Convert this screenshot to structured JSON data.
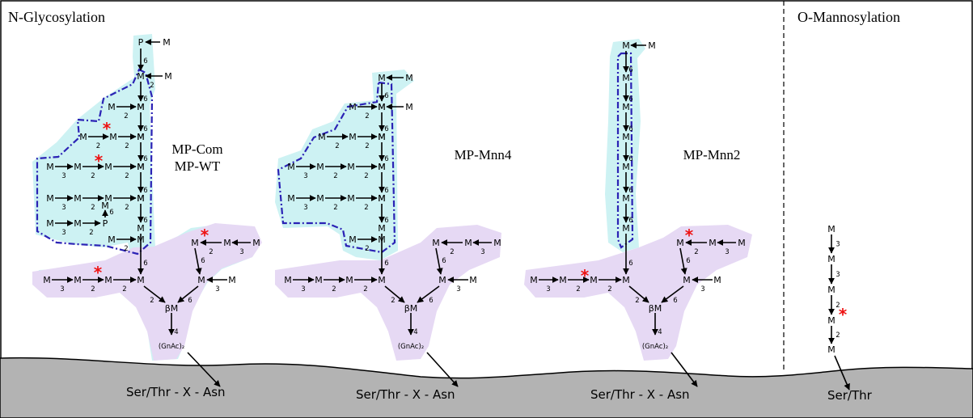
{
  "panels": {
    "left_title": "N-Glycosylation",
    "right_title": "O-Mannosylation"
  },
  "strains": [
    {
      "line1": "MP-Com",
      "line2": "MP-WT"
    },
    {
      "line1": "MP-Mnn4",
      "line2": ""
    },
    {
      "line1": "MP-Mnn2",
      "line2": ""
    }
  ],
  "glycan": {
    "mannose": "M",
    "phosphate": "P",
    "beta_mannose": "βM",
    "core": "(GnAc)₂",
    "star": "*"
  },
  "linkages": [
    "2",
    "3",
    "4",
    "6"
  ],
  "sequons": {
    "n_site": "Ser/Thr - X - Asn",
    "o_site": "Ser/Thr"
  },
  "colors": {
    "outer_region": "#cdf2f3",
    "core_region": "#e6d9f4",
    "dashed_outline": "#2b22b5",
    "star": "#ee1111",
    "membrane": "#b3b3b3"
  }
}
